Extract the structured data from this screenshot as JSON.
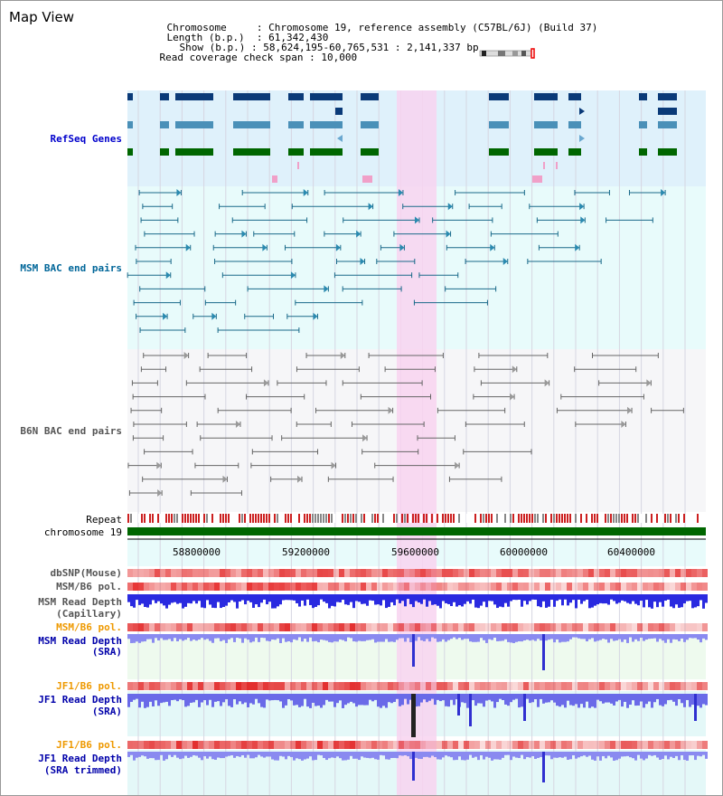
{
  "title": "Map View",
  "info": {
    "chromosome_key": "Chromosome",
    "chromosome_val": "Chromosome 19, reference assembly (C57BL/6J) (Build 37)",
    "length_key": "Length (b.p.)",
    "length_val": "61,342,430",
    "show_key": "Show (b.p.)",
    "show_val": "58,624,195-60,765,531 : 2,141,337 bp",
    "span_key": "Read coverage check span",
    "span_val": "10,000"
  },
  "tracks": {
    "refseq": "RefSeq Genes",
    "msm_bac": "MSM BAC end pairs",
    "b6n_bac": "B6N BAC end pairs",
    "repeat": "Repeat",
    "chromosome": "chromosome 19",
    "dbsnp": "dbSNP(Mouse)",
    "msm_b6_pol_1": "MSM/B6 pol.",
    "msm_depth_cap_1": "MSM Read Depth",
    "msm_depth_cap_2": "(Capillary)",
    "msm_b6_pol_2": "MSM/B6 pol.",
    "msm_depth_sra_1": "MSM Read Depth",
    "msm_depth_sra_2": "(SRA)",
    "jf1_b6_pol_1": "JF1/B6 pol.",
    "jf1_depth_sra_1": "JF1 Read Depth",
    "jf1_depth_sra_2": "(SRA)",
    "jf1_b6_pol_2": "JF1/B6 pol.",
    "jf1_depth_trim_1": "JF1 Read Depth",
    "jf1_depth_trim_2": "(SRA trimmed)"
  },
  "axis": {
    "ticks": [
      "58800000",
      "59200000",
      "59600000",
      "60000000",
      "60400000"
    ]
  },
  "colors": {
    "refseq_label": "#0000cc",
    "msm_label": "#006699",
    "b6n_label": "#555555",
    "orange_label": "#ee9900",
    "blue_label": "#0000aa",
    "highlight": "#f8d4f0",
    "refseq_bg": "#dff1fb",
    "msm_bg": "#e8fbfb",
    "chromosome": "#006600"
  }
}
